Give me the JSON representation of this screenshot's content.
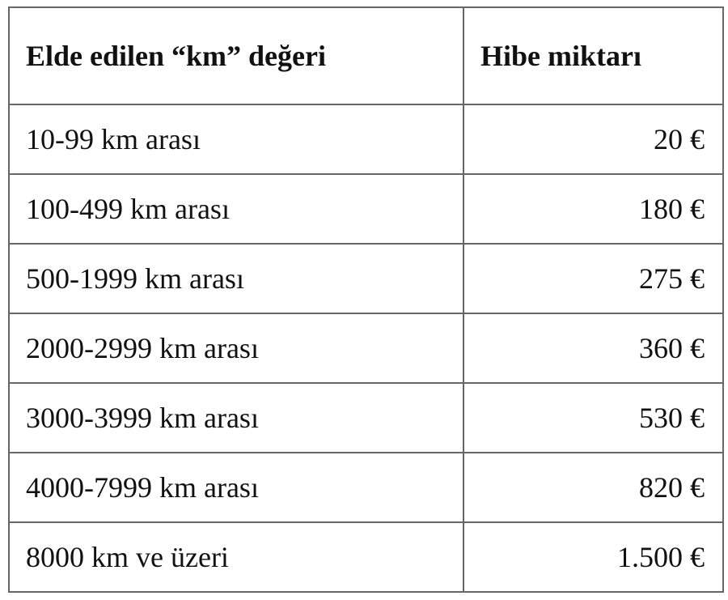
{
  "table": {
    "header": [
      "Elde edilen “km” değeri",
      "Hibe miktarı"
    ],
    "rows": [
      [
        "10-99 km arası",
        "20 €"
      ],
      [
        "100-499 km arası",
        "180 €"
      ],
      [
        "500-1999 km arası",
        "275 €"
      ],
      [
        "2000-2999 km arası",
        "360 €"
      ],
      [
        "3000-3999 km arası",
        "530 €"
      ],
      [
        "4000-7999 km arası",
        "820 €"
      ],
      [
        "8000 km ve üzeri",
        "1.500 €"
      ]
    ]
  }
}
